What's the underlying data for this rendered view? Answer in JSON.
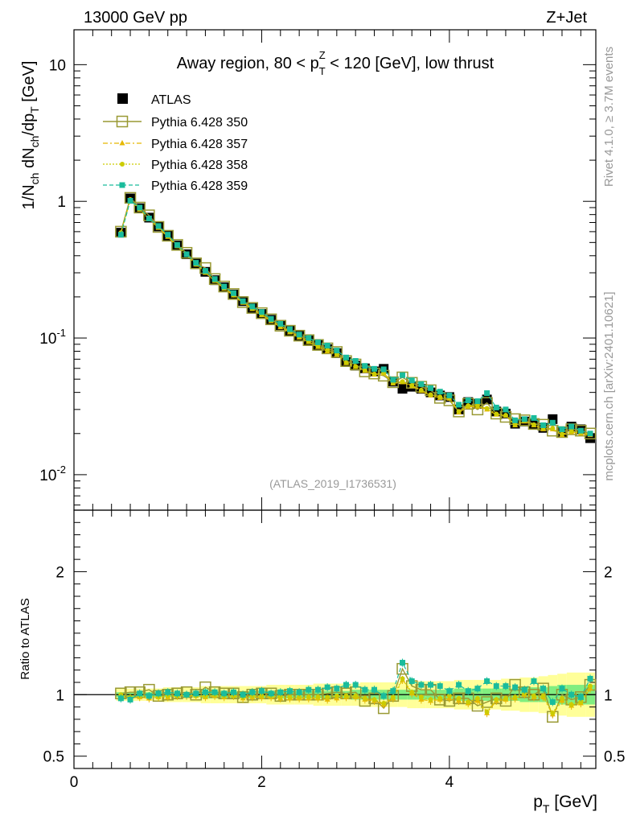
{
  "header": {
    "left": "13000 GeV pp",
    "right": "Z+Jet"
  },
  "side_labels": {
    "rivet": "Rivet 4.1.0, ≥ 3.7M events",
    "mcplots": "mcplots.cern.ch [arXiv:2401.10621]"
  },
  "colors": {
    "atlas": "#000000",
    "p350": "#999933",
    "p357": "#e6b800",
    "p358": "#cccc00",
    "p359": "#1abc9c",
    "band_yellow": "#ffff99",
    "band_green": "#80ee80"
  },
  "chart_data": [
    {
      "type": "scatter",
      "title": "Away region, 80 < p_T^Z < 120 [GeV], low thrust",
      "watermark": "(ATLAS_2019_I1736531)",
      "ylabel": "1/N_ch dN_ch/dp_T [GeV]",
      "yscale": "log",
      "ylim": [
        0.0055,
        18
      ],
      "xlim": [
        0,
        5.56
      ],
      "y_ticks": [
        {
          "value": 10,
          "label": "10"
        },
        {
          "value": 1,
          "label": "1"
        },
        {
          "value": 0.1,
          "label": "10^-1"
        },
        {
          "value": 0.01,
          "label": "10^-2"
        }
      ],
      "x": [
        0.5,
        0.6,
        0.7,
        0.8,
        0.9,
        1.0,
        1.1,
        1.2,
        1.3,
        1.4,
        1.5,
        1.6,
        1.7,
        1.8,
        1.9,
        2.0,
        2.1,
        2.2,
        2.3,
        2.4,
        2.5,
        2.6,
        2.7,
        2.8,
        2.9,
        3.0,
        3.1,
        3.2,
        3.3,
        3.4,
        3.5,
        3.6,
        3.7,
        3.8,
        3.9,
        4.0,
        4.1,
        4.2,
        4.3,
        4.4,
        4.5,
        4.6,
        4.7,
        4.8,
        4.9,
        5.0,
        5.1,
        5.2,
        5.3,
        5.4,
        5.5
      ],
      "series": [
        {
          "name": "ATLAS",
          "key": "atlas",
          "values": [
            0.59,
            1.05,
            0.89,
            0.76,
            0.655,
            0.56,
            0.475,
            0.41,
            0.35,
            0.305,
            0.265,
            0.235,
            0.208,
            0.186,
            0.166,
            0.15,
            0.136,
            0.124,
            0.113,
            0.104,
            0.096,
            0.089,
            0.083,
            0.0775,
            0.0668,
            0.0628,
            0.06,
            0.057,
            0.0595,
            0.048,
            0.0425,
            0.044,
            0.0425,
            0.04,
            0.038,
            0.037,
            0.03,
            0.034,
            0.033,
            0.0355,
            0.029,
            0.028,
            0.0236,
            0.0245,
            0.0235,
            0.022,
            0.0255,
            0.0205,
            0.0225,
            0.0215,
            0.0185
          ]
        },
        {
          "name": "Pythia 6.428 350",
          "key": "p350",
          "values": [
            0.6,
            1.06,
            0.9,
            0.79,
            0.65,
            0.56,
            0.48,
            0.42,
            0.352,
            0.325,
            0.27,
            0.238,
            0.21,
            0.183,
            0.166,
            0.152,
            0.137,
            0.123,
            0.113,
            0.104,
            0.0965,
            0.089,
            0.084,
            0.079,
            0.0678,
            0.064,
            0.057,
            0.055,
            0.053,
            0.0475,
            0.0515,
            0.047,
            0.044,
            0.0415,
            0.0365,
            0.035,
            0.029,
            0.033,
            0.03,
            0.0335,
            0.028,
            0.0265,
            0.0255,
            0.025,
            0.0235,
            0.0232,
            0.021,
            0.0205,
            0.0215,
            0.021,
            0.02
          ]
        },
        {
          "name": "Pythia 6.428 357",
          "key": "p357",
          "values": [
            0.58,
            1.02,
            0.87,
            0.74,
            0.64,
            0.55,
            0.47,
            0.405,
            0.345,
            0.3,
            0.262,
            0.23,
            0.205,
            0.181,
            0.163,
            0.147,
            0.133,
            0.12,
            0.11,
            0.101,
            0.0935,
            0.086,
            0.08,
            0.0755,
            0.0655,
            0.0615,
            0.0575,
            0.054,
            0.055,
            0.0465,
            0.0475,
            0.0445,
            0.041,
            0.038,
            0.0365,
            0.036,
            0.0285,
            0.0315,
            0.0315,
            0.03,
            0.0275,
            0.027,
            0.023,
            0.0245,
            0.023,
            0.0215,
            0.0215,
            0.0195,
            0.0205,
            0.02,
            0.0195
          ]
        },
        {
          "name": "Pythia 6.428 358",
          "key": "p358",
          "values": [
            0.59,
            1.03,
            0.88,
            0.75,
            0.645,
            0.555,
            0.472,
            0.408,
            0.347,
            0.302,
            0.264,
            0.232,
            0.206,
            0.183,
            0.164,
            0.148,
            0.134,
            0.122,
            0.111,
            0.102,
            0.094,
            0.087,
            0.0815,
            0.0765,
            0.066,
            0.062,
            0.058,
            0.0545,
            0.0555,
            0.047,
            0.048,
            0.045,
            0.0415,
            0.0385,
            0.037,
            0.0365,
            0.029,
            0.032,
            0.032,
            0.0305,
            0.0278,
            0.0272,
            0.0232,
            0.0248,
            0.0232,
            0.0218,
            0.0218,
            0.0198,
            0.0208,
            0.0203,
            0.0198
          ]
        },
        {
          "name": "Pythia 6.428 359",
          "key": "p359",
          "values": [
            0.57,
            1.01,
            0.9,
            0.75,
            0.66,
            0.57,
            0.48,
            0.41,
            0.355,
            0.31,
            0.27,
            0.238,
            0.213,
            0.186,
            0.17,
            0.155,
            0.138,
            0.127,
            0.116,
            0.106,
            0.1,
            0.093,
            0.088,
            0.081,
            0.072,
            0.068,
            0.0625,
            0.0595,
            0.059,
            0.0495,
            0.0535,
            0.049,
            0.046,
            0.043,
            0.0405,
            0.038,
            0.0325,
            0.035,
            0.0345,
            0.0395,
            0.031,
            0.03,
            0.025,
            0.0255,
            0.026,
            0.023,
            0.024,
            0.0215,
            0.0225,
            0.021,
            0.02
          ]
        }
      ]
    },
    {
      "type": "scatter",
      "ylabel": "Ratio to ATLAS",
      "xlabel": "p_T [GeV]",
      "ylim": [
        0.4,
        2.5
      ],
      "xlim": [
        0,
        5.56
      ],
      "x_ticks": [
        0,
        2,
        4
      ],
      "y_ticks": [
        0.5,
        1,
        2
      ],
      "reference_line": 1,
      "x": [
        0.5,
        0.6,
        0.7,
        0.8,
        0.9,
        1.0,
        1.1,
        1.2,
        1.3,
        1.4,
        1.5,
        1.6,
        1.7,
        1.8,
        1.9,
        2.0,
        2.1,
        2.2,
        2.3,
        2.4,
        2.5,
        2.6,
        2.7,
        2.8,
        2.9,
        3.0,
        3.1,
        3.2,
        3.3,
        3.4,
        3.5,
        3.6,
        3.7,
        3.8,
        3.9,
        4.0,
        4.1,
        4.2,
        4.3,
        4.4,
        4.5,
        4.6,
        4.7,
        4.8,
        4.9,
        5.0,
        5.1,
        5.2,
        5.3,
        5.4,
        5.5
      ],
      "band_yellow_halfwidth": [
        0.05,
        0.05,
        0.05,
        0.05,
        0.05,
        0.06,
        0.06,
        0.06,
        0.06,
        0.07,
        0.07,
        0.07,
        0.07,
        0.07,
        0.07,
        0.07,
        0.08,
        0.08,
        0.08,
        0.08,
        0.08,
        0.09,
        0.09,
        0.09,
        0.09,
        0.09,
        0.1,
        0.1,
        0.1,
        0.1,
        0.1,
        0.11,
        0.11,
        0.11,
        0.11,
        0.11,
        0.12,
        0.12,
        0.12,
        0.12,
        0.12,
        0.13,
        0.13,
        0.14,
        0.14,
        0.15,
        0.16,
        0.17,
        0.18,
        0.18,
        0.18
      ],
      "band_green_halfwidth": [
        0.02,
        0.02,
        0.02,
        0.02,
        0.02,
        0.02,
        0.02,
        0.02,
        0.02,
        0.03,
        0.03,
        0.03,
        0.03,
        0.03,
        0.03,
        0.03,
        0.03,
        0.03,
        0.03,
        0.03,
        0.03,
        0.03,
        0.03,
        0.03,
        0.03,
        0.04,
        0.04,
        0.04,
        0.04,
        0.04,
        0.04,
        0.04,
        0.04,
        0.04,
        0.04,
        0.04,
        0.05,
        0.05,
        0.05,
        0.05,
        0.05,
        0.05,
        0.05,
        0.06,
        0.06,
        0.06,
        0.07,
        0.08,
        0.08,
        0.08,
        0.08
      ],
      "series": [
        {
          "name": "Pythia 6.428 350",
          "key": "p350",
          "values": [
            1.01,
            1.02,
            1.02,
            1.04,
            0.99,
            1.0,
            1.01,
            1.02,
            1.0,
            1.06,
            1.02,
            1.01,
            1.01,
            0.98,
            1.0,
            1.01,
            1.01,
            0.99,
            1.0,
            1.0,
            1.0,
            1.0,
            1.01,
            1.02,
            1.01,
            1.02,
            0.95,
            0.97,
            0.89,
            0.99,
            1.21,
            1.07,
            1.04,
            1.04,
            0.96,
            0.95,
            0.97,
            0.97,
            0.91,
            0.94,
            0.97,
            0.95,
            1.08,
            1.02,
            1.0,
            1.05,
            0.82,
            1.0,
            0.96,
            0.98,
            1.08
          ]
        },
        {
          "name": "Pythia 6.428 357",
          "key": "p357",
          "values": [
            0.98,
            0.97,
            0.98,
            0.97,
            0.98,
            0.98,
            0.99,
            0.99,
            0.99,
            0.98,
            0.99,
            0.98,
            0.99,
            0.97,
            0.98,
            0.98,
            0.98,
            0.97,
            0.97,
            0.97,
            0.97,
            0.97,
            0.96,
            0.97,
            0.98,
            0.98,
            0.96,
            0.95,
            0.92,
            0.97,
            1.12,
            1.01,
            0.96,
            0.95,
            0.96,
            0.97,
            0.95,
            0.93,
            0.95,
            0.85,
            0.95,
            0.96,
            0.97,
            1.0,
            0.98,
            0.98,
            0.84,
            0.95,
            0.91,
            0.93,
            1.05
          ]
        },
        {
          "name": "Pythia 6.428 358",
          "key": "p358",
          "values": [
            1.0,
            0.98,
            0.99,
            0.99,
            0.98,
            0.99,
            0.99,
            1.0,
            0.99,
            0.99,
            1.0,
            0.99,
            0.99,
            0.98,
            0.99,
            0.99,
            0.99,
            0.98,
            0.98,
            0.98,
            0.98,
            0.98,
            0.98,
            0.99,
            0.99,
            0.99,
            0.97,
            0.96,
            0.93,
            0.98,
            1.13,
            1.02,
            0.98,
            0.96,
            0.97,
            0.99,
            0.97,
            0.94,
            0.97,
            0.86,
            0.96,
            0.97,
            0.98,
            1.01,
            0.99,
            0.99,
            0.85,
            0.97,
            0.92,
            0.94,
            1.07
          ]
        },
        {
          "name": "Pythia 6.428 359",
          "key": "p359",
          "values": [
            0.97,
            0.96,
            1.01,
            0.99,
            1.01,
            1.02,
            1.01,
            1.0,
            1.01,
            1.02,
            1.02,
            1.01,
            1.02,
            1.0,
            1.02,
            1.03,
            1.01,
            1.02,
            1.03,
            1.02,
            1.04,
            1.04,
            1.06,
            1.05,
            1.08,
            1.08,
            1.04,
            1.04,
            0.99,
            1.03,
            1.26,
            1.11,
            1.08,
            1.08,
            1.07,
            1.03,
            1.08,
            1.03,
            1.05,
            1.11,
            1.07,
            1.07,
            1.06,
            1.04,
            1.11,
            1.05,
            0.94,
            1.05,
            1.0,
            0.98,
            1.13
          ]
        }
      ]
    }
  ]
}
